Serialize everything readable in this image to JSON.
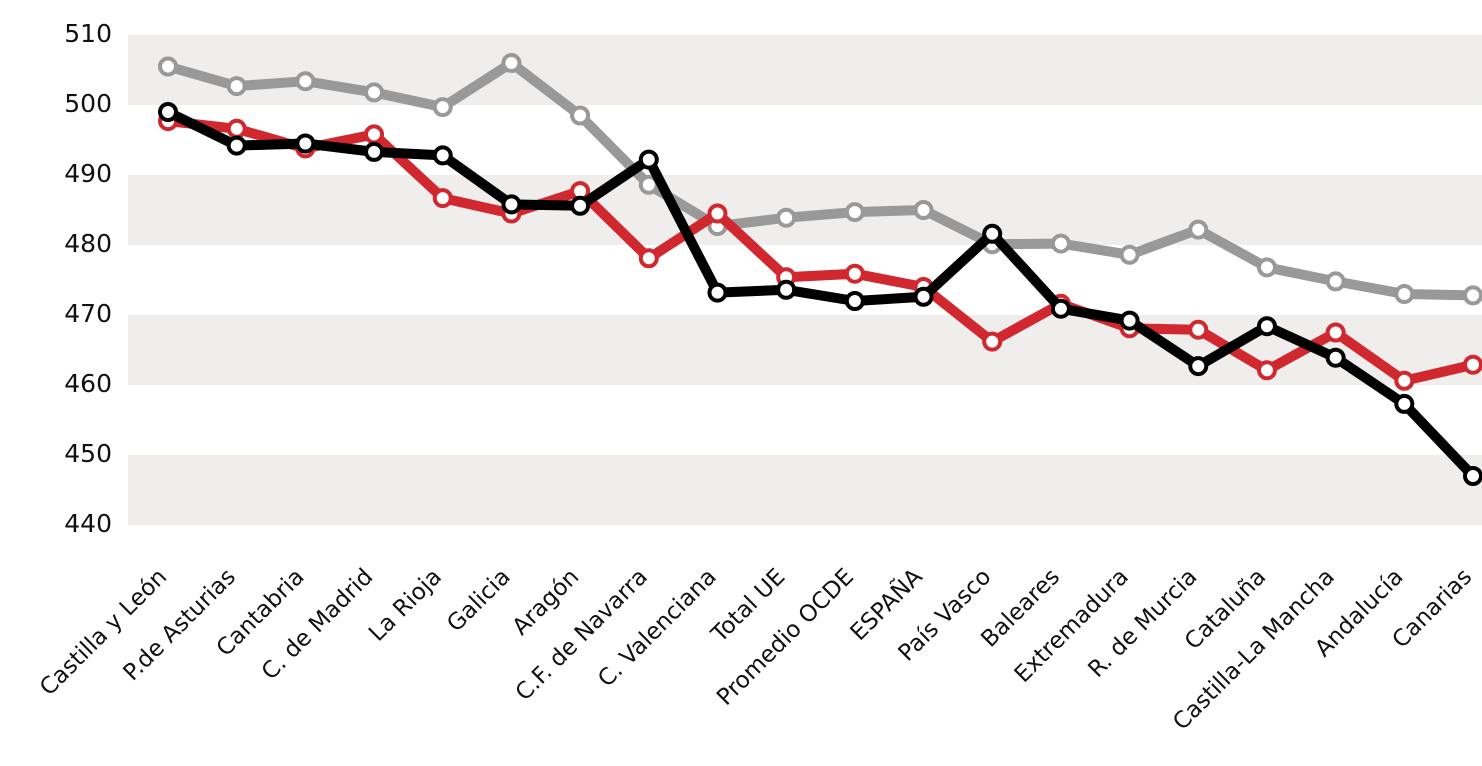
{
  "chart_data": {
    "type": "line",
    "title": "",
    "xlabel": "",
    "ylabel": "",
    "ylim": [
      440,
      510
    ],
    "yticks": [
      510,
      500,
      490,
      480,
      470,
      460,
      450,
      440
    ],
    "grid": "alternating horizontal bands",
    "categories": [
      "Castilla y León",
      "P.de Asturias",
      "Cantabria",
      "C. de Madrid",
      "La Rioja",
      "Galicia",
      "Aragón",
      "C.F. de Navarra",
      "C. Valenciana",
      "Total UE",
      "Promedio OCDE",
      "ESPAÑA",
      "País Vasco",
      "Baleares",
      "Extremadura",
      "R. de Murcia",
      "Cataluña",
      "Castilla-La Mancha",
      "Andalucía",
      "Canarias"
    ],
    "series": [
      {
        "color": "#999999",
        "values": [
          505.5,
          502.7,
          503.4,
          501.8,
          499.7,
          506,
          498.5,
          488.6,
          482.7,
          483.9,
          484.7,
          485,
          480.1,
          480.2,
          478.6,
          482.2,
          476.8,
          474.8,
          473,
          472.8
        ]
      },
      {
        "color": "#d0282e",
        "values": [
          497.7,
          496.6,
          493.8,
          495.8,
          486.7,
          484.5,
          487.7,
          478.1,
          484.5,
          475.4,
          475.9,
          474,
          466.2,
          471.6,
          468.1,
          467.9,
          462.1,
          467.5,
          460.6,
          462.9
        ]
      },
      {
        "color": "#000000",
        "values": [
          499,
          494.2,
          494.5,
          493.3,
          492.8,
          485.8,
          485.6,
          492.2,
          473.2,
          473.6,
          472,
          472.6,
          481.6,
          470.9,
          469.2,
          462.7,
          468.4,
          463.9,
          457.3,
          447
        ]
      }
    ]
  }
}
